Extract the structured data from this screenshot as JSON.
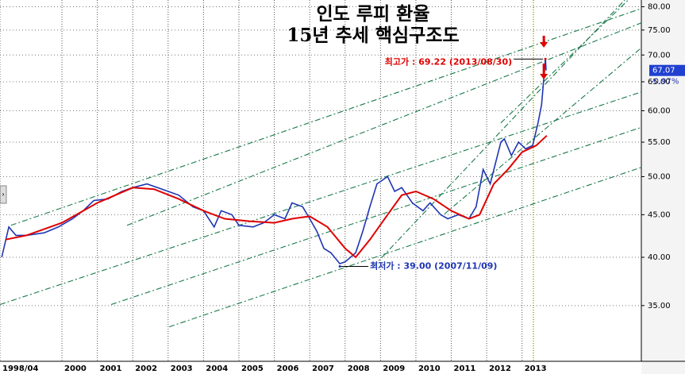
{
  "chart_data": {
    "type": "line",
    "title": [
      "인도 루피 환율",
      "15년 추세 핵심구조도"
    ],
    "log_scale": true,
    "grid": true,
    "xlim": [
      1998.25,
      2016.37
    ],
    "ylim": [
      30,
      81.5
    ],
    "xticks": [
      {
        "value": 1998.25,
        "label": "1998/04"
      },
      {
        "value": 2000,
        "label": "2000"
      },
      {
        "value": 2001,
        "label": "2001"
      },
      {
        "value": 2002,
        "label": "2002"
      },
      {
        "value": 2003,
        "label": "2003"
      },
      {
        "value": 2004,
        "label": "2004"
      },
      {
        "value": 2005,
        "label": "2005"
      },
      {
        "value": 2006,
        "label": "2006"
      },
      {
        "value": 2007,
        "label": "2007"
      },
      {
        "value": 2008,
        "label": "2008"
      },
      {
        "value": 2009,
        "label": "2009"
      },
      {
        "value": 2010,
        "label": "2010"
      },
      {
        "value": 2011,
        "label": "2011"
      },
      {
        "value": 2012,
        "label": "2012"
      },
      {
        "value": 2013,
        "label": "2013"
      }
    ],
    "yticks": [
      {
        "value": 35,
        "label": "35.00"
      },
      {
        "value": 40,
        "label": "40.00"
      },
      {
        "value": 45,
        "label": "45.00"
      },
      {
        "value": 50,
        "label": "50.00"
      },
      {
        "value": 55,
        "label": "55.00"
      },
      {
        "value": 60,
        "label": "60.00"
      },
      {
        "value": 65,
        "label": "65.00"
      },
      {
        "value": 70,
        "label": "70.00"
      },
      {
        "value": 75,
        "label": "75.00"
      },
      {
        "value": 80,
        "label": "80.00"
      }
    ],
    "series": [
      {
        "color": "#1f35b5",
        "x": [
          1998.3,
          1998.5,
          1998.7,
          1999.0,
          1999.5,
          1999.9,
          2000.3,
          2000.6,
          2000.9,
          2001.3,
          2001.7,
          2002.0,
          2002.4,
          2002.7,
          2003.0,
          2003.3,
          2003.7,
          2004.0,
          2004.3,
          2004.5,
          2004.8,
          2005.0,
          2005.4,
          2005.7,
          2006.0,
          2006.3,
          2006.5,
          2006.8,
          2007.0,
          2007.2,
          2007.4,
          2007.6,
          2007.85,
          2008.0,
          2008.3,
          2008.5,
          2008.7,
          2008.9,
          2009.2,
          2009.4,
          2009.6,
          2009.9,
          2010.2,
          2010.4,
          2010.7,
          2010.9,
          2011.2,
          2011.5,
          2011.7,
          2011.9,
          2012.1,
          2012.4,
          2012.5,
          2012.7,
          2012.9,
          2013.1,
          2013.3,
          2013.45,
          2013.55,
          2013.66,
          2013.68
        ],
        "values": [
          40,
          43.5,
          42.5,
          42.5,
          42.8,
          43.5,
          44.5,
          45.5,
          46.8,
          47,
          48,
          48.5,
          49,
          48.5,
          48,
          47.5,
          46,
          45.5,
          43.5,
          45.5,
          45,
          43.7,
          43.5,
          44,
          45,
          44.5,
          46.5,
          46,
          44.5,
          43,
          41,
          40.5,
          39.3,
          39.5,
          40.5,
          43,
          46,
          49,
          50,
          48,
          48.5,
          46.5,
          45.5,
          46.5,
          45,
          44.5,
          45,
          44.5,
          46,
          51,
          49,
          55,
          55.5,
          53,
          55,
          54,
          54.5,
          58,
          61,
          69.22,
          67.07
        ]
      },
      {
        "color": "#e00000",
        "x": [
          1998.4,
          1999.0,
          2000.0,
          2001.0,
          2002.0,
          2002.6,
          2003.3,
          2004.0,
          2004.6,
          2005.3,
          2006.0,
          2006.5,
          2007.0,
          2007.5,
          2008.0,
          2008.3,
          2008.7,
          2009.2,
          2009.6,
          2010.0,
          2010.5,
          2011.0,
          2011.5,
          2011.8,
          2012.2,
          2012.6,
          2013.0,
          2013.4,
          2013.7
        ],
        "values": [
          42,
          42.5,
          44,
          46.5,
          48.5,
          48.3,
          47,
          45.5,
          44.5,
          44.2,
          44,
          44.5,
          44.8,
          43.5,
          41,
          40,
          42,
          45,
          47.5,
          48,
          47,
          45.5,
          44.5,
          45,
          49,
          51,
          53.5,
          54.5,
          56
        ]
      }
    ],
    "channels": {
      "color": "#1a7a4a",
      "lines": [
        [
          [
            1998.56,
            43.7
          ],
          [
            2016.37,
            79.6
          ]
        ],
        [
          [
            1998.25,
            35.1
          ],
          [
            2016.37,
            63.2
          ]
        ],
        [
          [
            2001.84,
            43.7
          ],
          [
            2016.37,
            76.5
          ]
        ],
        [
          [
            2001.39,
            35.1
          ],
          [
            2016.37,
            57.3
          ]
        ],
        [
          [
            2003.03,
            33.0
          ],
          [
            2016.37,
            51.3
          ]
        ],
        [
          [
            2008.8,
            39.0
          ],
          [
            2015.9,
            81.5
          ]
        ],
        [
          [
            2010.81,
            45.1
          ],
          [
            2016.37,
            71.4
          ]
        ],
        [
          [
            2012.4,
            58.0
          ],
          [
            2016.0,
            81.5
          ]
        ]
      ]
    },
    "cursor_x": 2013.32,
    "high": {
      "label": "최고가 : 69.22 (2013/08/30)",
      "x": 2013.66,
      "value": 69.22
    },
    "low": {
      "label": "최저가 : 39.00 (2007/11/09)",
      "x": 2007.85,
      "value": 39.0
    },
    "last": {
      "value": 67.07,
      "change": "-0.97%"
    }
  }
}
